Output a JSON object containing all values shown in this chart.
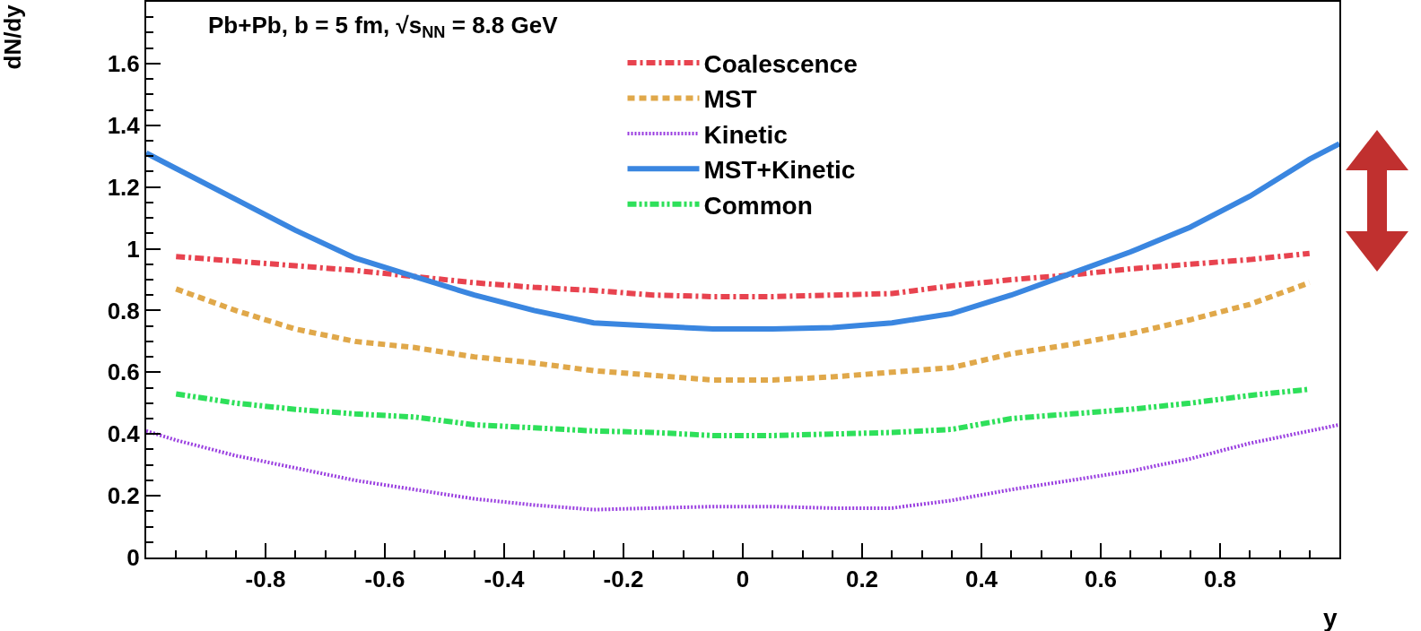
{
  "chart_data": {
    "type": "line",
    "title": "Pb+Pb, b = 5 fm, √s$_{NN}$ = 8.8 GeV",
    "xlabel": "y",
    "ylabel": "dN/dy",
    "x": [
      -0.95,
      -0.85,
      -0.75,
      -0.65,
      -0.55,
      -0.45,
      -0.35,
      -0.25,
      -0.15,
      -0.05,
      0.05,
      0.15,
      0.25,
      0.35,
      0.45,
      0.55,
      0.65,
      0.75,
      0.85,
      0.95
    ],
    "series": [
      {
        "name": "Coalescence",
        "color": "#e8434f",
        "line_style": "dashdot",
        "values": [
          0.975,
          0.96,
          0.945,
          0.93,
          0.91,
          0.89,
          0.875,
          0.865,
          0.85,
          0.845,
          0.845,
          0.85,
          0.855,
          0.88,
          0.9,
          0.915,
          0.935,
          0.95,
          0.965,
          0.985
        ]
      },
      {
        "name": "MST",
        "color": "#e0a84a",
        "line_style": "dashed",
        "values": [
          0.87,
          0.8,
          0.74,
          0.7,
          0.68,
          0.65,
          0.63,
          0.605,
          0.59,
          0.575,
          0.575,
          0.585,
          0.6,
          0.615,
          0.66,
          0.69,
          0.725,
          0.77,
          0.82,
          0.89
        ]
      },
      {
        "name": "Kinetic",
        "color": "#9a3fe0",
        "line_style": "dotted",
        "x": [
          -1,
          -0.95,
          -0.85,
          -0.75,
          -0.65,
          -0.55,
          -0.45,
          -0.35,
          -0.25,
          -0.15,
          -0.05,
          0.05,
          0.15,
          0.25,
          0.35,
          0.45,
          0.55,
          0.65,
          0.75,
          0.85,
          0.95,
          1
        ],
        "values": [
          0.41,
          0.38,
          0.33,
          0.29,
          0.25,
          0.22,
          0.19,
          0.17,
          0.155,
          0.16,
          0.165,
          0.165,
          0.16,
          0.16,
          0.185,
          0.22,
          0.25,
          0.28,
          0.32,
          0.37,
          0.41,
          0.43
        ]
      },
      {
        "name": "MST+Kinetic",
        "color": "#3a86e0",
        "line_style": "solid",
        "x": [
          -1,
          -0.95,
          -0.85,
          -0.75,
          -0.65,
          -0.55,
          -0.45,
          -0.35,
          -0.25,
          -0.15,
          -0.05,
          0.05,
          0.15,
          0.25,
          0.35,
          0.45,
          0.55,
          0.65,
          0.75,
          0.85,
          0.95,
          1
        ],
        "values": [
          1.31,
          1.26,
          1.16,
          1.06,
          0.97,
          0.91,
          0.85,
          0.8,
          0.76,
          0.75,
          0.74,
          0.74,
          0.745,
          0.76,
          0.79,
          0.85,
          0.92,
          0.99,
          1.07,
          1.17,
          1.29,
          1.34
        ]
      },
      {
        "name": "Common",
        "color": "#2ee05a",
        "line_style": "dashdotdot",
        "values": [
          0.53,
          0.5,
          0.48,
          0.465,
          0.455,
          0.43,
          0.42,
          0.41,
          0.405,
          0.395,
          0.395,
          0.4,
          0.405,
          0.415,
          0.45,
          0.465,
          0.48,
          0.5,
          0.525,
          0.545
        ]
      }
    ],
    "xlim": [
      -1,
      1
    ],
    "xticks": [
      -0.8,
      -0.6,
      -0.4,
      -0.2,
      0,
      0.2,
      0.4,
      0.6,
      0.8
    ],
    "ylim": [
      0,
      1.8
    ],
    "yticks": [
      0,
      0.2,
      0.4,
      0.6,
      0.8,
      1,
      1.2,
      1.4,
      1.6
    ],
    "grid": false,
    "legend": "top"
  }
}
